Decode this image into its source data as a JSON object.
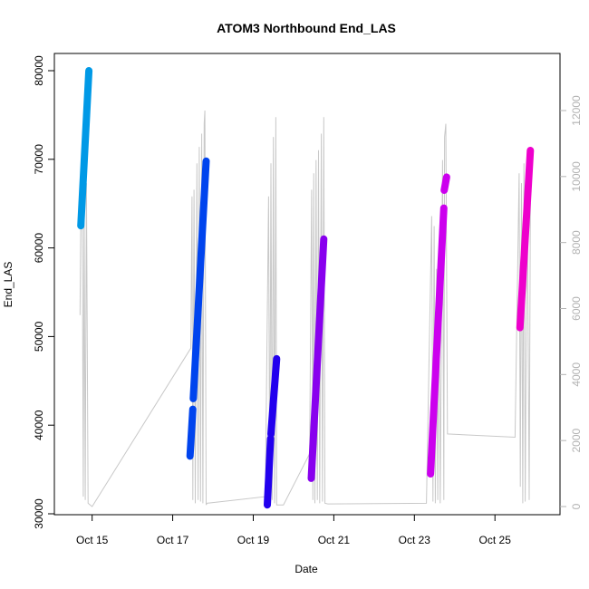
{
  "chart_data": {
    "type": "line",
    "title": "ATOM3 Northbound End_LAS",
    "xlabel": "Date",
    "ylabel": "End_LAS",
    "x_tick_labels": [
      "Oct 15",
      "Oct 17",
      "Oct 19",
      "Oct 21",
      "Oct 23",
      "Oct 25"
    ],
    "x_ticks": [
      15,
      17,
      19,
      21,
      23,
      25
    ],
    "xlim": [
      14.4,
      26.3
    ],
    "ylim": [
      30000,
      80000
    ],
    "y_ticks": [
      30000,
      40000,
      50000,
      60000,
      70000,
      80000
    ],
    "y_tick_labels": [
      "30000",
      "40000",
      "50000",
      "60000",
      "70000",
      "80000"
    ],
    "y2lim": [
      0,
      12000
    ],
    "y2_ticks": [
      0,
      2000,
      4000,
      6000,
      8000,
      10000,
      12000
    ],
    "y2_tick_labels": [
      "0",
      "2000",
      "4000",
      "6000",
      "8000",
      "10000",
      "12000"
    ],
    "series": [
      {
        "color": "#0099e6",
        "segments": [
          {
            "x": [
              14.72,
              14.92
            ],
            "y": [
              62500,
              80000
            ]
          }
        ]
      },
      {
        "color": "#0044ee",
        "segments": [
          {
            "x": [
              17.43,
              17.5
            ],
            "y": [
              36500,
              41800
            ]
          },
          {
            "x": [
              17.51,
              17.83
            ],
            "y": [
              43000,
              69800
            ]
          }
        ]
      },
      {
        "color": "#2200ee",
        "segments": [
          {
            "x": [
              19.35,
              19.43
            ],
            "y": [
              31000,
              38500
            ]
          },
          {
            "x": [
              19.44,
              19.58
            ],
            "y": [
              39000,
              47500
            ]
          }
        ]
      },
      {
        "color": "#8800ee",
        "segments": [
          {
            "x": [
              20.44,
              20.75
            ],
            "y": [
              34000,
              61000
            ]
          }
        ]
      },
      {
        "color": "#cc00ee",
        "segments": [
          {
            "x": [
              23.4,
              23.73
            ],
            "y": [
              34500,
              64500
            ]
          },
          {
            "x": [
              23.74,
              23.8
            ],
            "y": [
              66500,
              68000
            ]
          }
        ]
      },
      {
        "color": "#ee00cc",
        "segments": [
          {
            "x": [
              25.62,
              25.88
            ],
            "y": [
              51000,
              71000
            ]
          }
        ]
      }
    ],
    "secondary_series": {
      "color": "#c8c8c8",
      "axis": "right",
      "points": [
        [
          14.7,
          5800
        ],
        [
          14.72,
          9000
        ],
        [
          14.75,
          10200
        ],
        [
          14.78,
          300
        ],
        [
          14.8,
          9500
        ],
        [
          14.83,
          200
        ],
        [
          14.86,
          9800
        ],
        [
          14.9,
          100
        ],
        [
          15.0,
          0
        ],
        [
          17.45,
          4800
        ],
        [
          17.48,
          9400
        ],
        [
          17.5,
          200
        ],
        [
          17.53,
          9600
        ],
        [
          17.56,
          100
        ],
        [
          17.6,
          10400
        ],
        [
          17.63,
          200
        ],
        [
          17.66,
          10900
        ],
        [
          17.69,
          150
        ],
        [
          17.72,
          11300
        ],
        [
          17.75,
          100
        ],
        [
          17.78,
          11600
        ],
        [
          17.8,
          12000
        ],
        [
          17.83,
          50
        ],
        [
          17.85,
          100
        ],
        [
          19.3,
          300
        ],
        [
          19.38,
          9400
        ],
        [
          19.41,
          150
        ],
        [
          19.44,
          10400
        ],
        [
          19.47,
          200
        ],
        [
          19.5,
          11200
        ],
        [
          19.53,
          100
        ],
        [
          19.56,
          11800
        ],
        [
          19.58,
          50
        ],
        [
          19.75,
          50
        ],
        [
          20.4,
          1600
        ],
        [
          20.45,
          9600
        ],
        [
          20.48,
          200
        ],
        [
          20.5,
          10100
        ],
        [
          20.53,
          100
        ],
        [
          20.56,
          10500
        ],
        [
          20.59,
          200
        ],
        [
          20.62,
          10800
        ],
        [
          20.65,
          100
        ],
        [
          20.69,
          11300
        ],
        [
          20.72,
          150
        ],
        [
          20.75,
          11800
        ],
        [
          20.78,
          100
        ],
        [
          20.85,
          80
        ],
        [
          23.3,
          100
        ],
        [
          23.43,
          8800
        ],
        [
          23.46,
          150
        ],
        [
          23.49,
          8500
        ],
        [
          23.52,
          100
        ],
        [
          23.55,
          7200
        ],
        [
          23.58,
          200
        ],
        [
          23.61,
          7000
        ],
        [
          23.64,
          100
        ],
        [
          23.7,
          10500
        ],
        [
          23.73,
          200
        ],
        [
          23.75,
          11200
        ],
        [
          23.78,
          11600
        ],
        [
          23.82,
          2200
        ],
        [
          25.5,
          2100
        ],
        [
          25.6,
          10100
        ],
        [
          25.63,
          600
        ],
        [
          25.66,
          9800
        ],
        [
          25.69,
          100
        ],
        [
          25.72,
          10400
        ],
        [
          25.75,
          150
        ],
        [
          25.8,
          10000
        ],
        [
          25.85,
          200
        ],
        [
          25.88,
          9200
        ]
      ]
    }
  }
}
